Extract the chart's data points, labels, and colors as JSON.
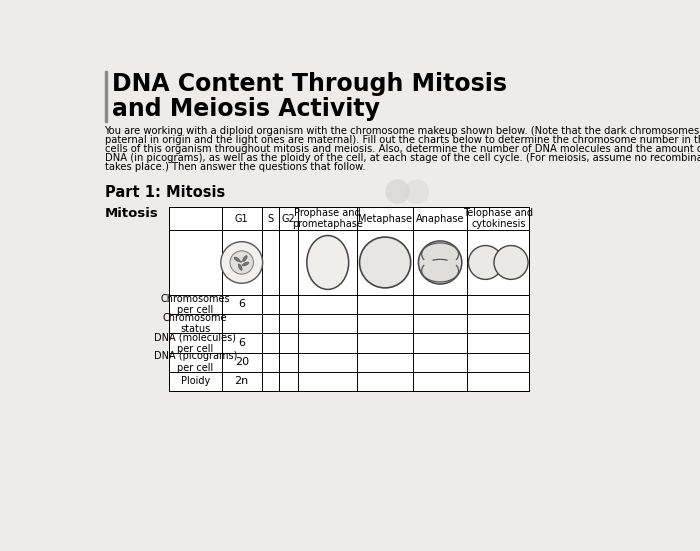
{
  "title_line1": "DNA Content Through Mitosis",
  "title_line2": "and Meiosis Activity",
  "body_text": "You are working with a diploid organism with the chromosome makeup shown below. (Note that the dark chromosomes are paternal in origin and the light ones are maternal). Fill out the charts below to determine the chromosome number in the cells of this organism throughout mitosis and meiosis. Also, determine the number of DNA molecules and the amount of DNA (in picograms), as well as the ploidy of the cell, at each stage of the cell cycle. (For meiosis, assume no recombination takes place.) Then answer the questions that follow.",
  "part1_label": "Part 1: Mitosis",
  "table_section_label": "Mitosis",
  "col_headers": [
    "G1",
    "S",
    "G2",
    "Prophase and\nprometaphase",
    "Metaphase",
    "Anaphase",
    "Telophase and\ncytokinesis"
  ],
  "row_labels": [
    "Chromosomes\nper cell",
    "Chromosome\nstatus",
    "DNA (molecules)\nper cell",
    "DNA (picograms)\nper cell",
    "Ploidy"
  ],
  "g1_values": [
    "6",
    "",
    "6",
    "20",
    "2n"
  ],
  "background_color": "#edecea",
  "bar_color": "#888888",
  "title_font_size": 17,
  "body_font_size": 7.2,
  "part_font_size": 10.5,
  "mitosis_font_size": 9.5
}
